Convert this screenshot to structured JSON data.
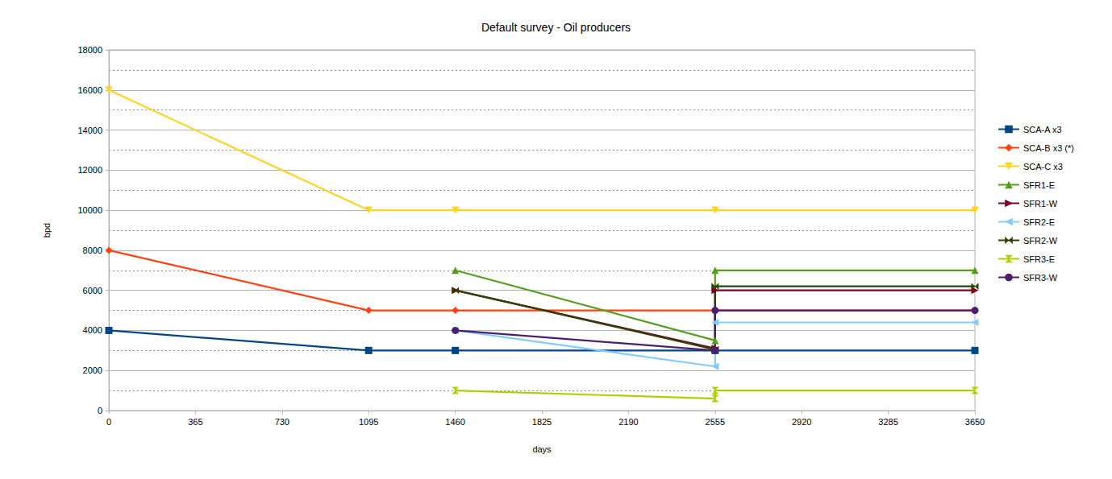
{
  "chart_data": {
    "type": "line",
    "title": "Default survey - Oil producers",
    "x_label": "days",
    "y_label": "bpd",
    "xlim": [
      0,
      3650
    ],
    "xticks": [
      0,
      365,
      730,
      1095,
      1460,
      1825,
      2190,
      2555,
      2920,
      3285,
      3650
    ],
    "ylim": [
      0,
      18000
    ],
    "yticks": [
      0,
      2000,
      4000,
      6000,
      8000,
      10000,
      12000,
      14000,
      16000,
      18000
    ],
    "grid": true,
    "legend": "right",
    "series": [
      {
        "name": "SCA-A x3",
        "color": "#004586",
        "marker": "square",
        "x": [
          0,
          1095,
          1460,
          2555,
          3650
        ],
        "values": [
          4000,
          3000,
          3000,
          3000,
          3000
        ]
      },
      {
        "name": "SCA-B x3 (*)",
        "color": "#ff420e",
        "marker": "diamond",
        "x": [
          0,
          1095,
          1460,
          2555,
          3650
        ],
        "values": [
          8000,
          5000,
          5000,
          5000,
          5000
        ]
      },
      {
        "name": "SCA-C x3",
        "color": "#ffd320",
        "marker": "triangle-down",
        "x": [
          0,
          1095,
          1460,
          2555,
          3650
        ],
        "values": [
          16000,
          10000,
          10000,
          10000,
          10000
        ]
      },
      {
        "name": "SFR1-E",
        "color": "#579d1c",
        "marker": "triangle-up",
        "x": [
          1460,
          2555,
          2555,
          3650
        ],
        "values": [
          7000,
          3500,
          7000,
          7000
        ]
      },
      {
        "name": "SFR1-W",
        "color": "#7e0021",
        "marker": "triangle-right",
        "x": [
          1460,
          2555,
          2555,
          3650
        ],
        "values": [
          6000,
          3100,
          6000,
          6000
        ]
      },
      {
        "name": "SFR2-E",
        "color": "#83caff",
        "marker": "triangle-left",
        "x": [
          1460,
          2555,
          2555,
          3650
        ],
        "values": [
          4000,
          2200,
          4400,
          4400
        ]
      },
      {
        "name": "SFR2-W",
        "color": "#314004",
        "marker": "bowtie",
        "x": [
          1460,
          2555,
          2555,
          3650
        ],
        "values": [
          6000,
          3050,
          6200,
          6200
        ]
      },
      {
        "name": "SFR3-E",
        "color": "#aecf00",
        "marker": "hourglass",
        "x": [
          1460,
          2555,
          2555,
          3650
        ],
        "values": [
          1000,
          600,
          1000,
          1000
        ]
      },
      {
        "name": "SFR3-W",
        "color": "#4b1f6f",
        "marker": "circle",
        "x": [
          1460,
          2555,
          2555,
          3650
        ],
        "values": [
          4000,
          3000,
          5000,
          5000
        ]
      }
    ]
  }
}
